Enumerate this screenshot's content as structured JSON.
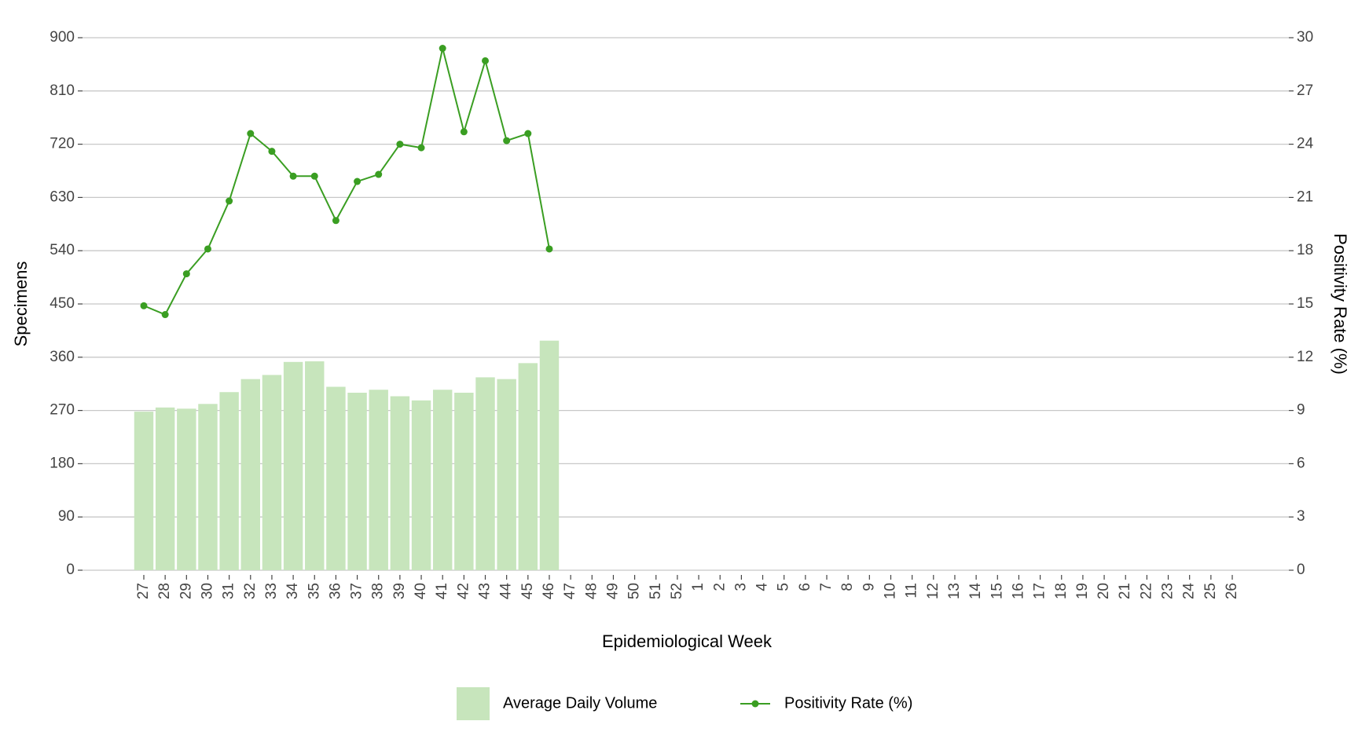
{
  "chart_data": {
    "type": "bar_line",
    "x_label": "Epidemiological Week",
    "y_label": "Specimens",
    "y2_label": "Positivity Rate (%)",
    "categories": [
      "27",
      "28",
      "29",
      "30",
      "31",
      "32",
      "33",
      "34",
      "35",
      "36",
      "37",
      "38",
      "39",
      "40",
      "41",
      "42",
      "43",
      "44",
      "45",
      "46",
      "47",
      "48",
      "49",
      "50",
      "51",
      "52",
      "1",
      "2",
      "3",
      "4",
      "5",
      "6",
      "7",
      "8",
      "9",
      "10",
      "11",
      "12",
      "13",
      "14",
      "15",
      "16",
      "17",
      "18",
      "19",
      "20",
      "21",
      "22",
      "23",
      "24",
      "25",
      "26"
    ],
    "series": [
      {
        "name": "Average Daily Volume",
        "type": "bar",
        "color": "#c7e5bc",
        "values": [
          268,
          275,
          273,
          281,
          301,
          323,
          330,
          352,
          353,
          310,
          300,
          305,
          294,
          287,
          305,
          300,
          326,
          323,
          350,
          388,
          null,
          null,
          null,
          null,
          null,
          null,
          null,
          null,
          null,
          null,
          null,
          null,
          null,
          null,
          null,
          null,
          null,
          null,
          null,
          null,
          null,
          null,
          null,
          null,
          null,
          null,
          null,
          null,
          null,
          null,
          null,
          null
        ]
      },
      {
        "name": "Positivity Rate (%)",
        "type": "line",
        "axis": "y2",
        "color": "#3a9e22",
        "values": [
          14.9,
          14.4,
          16.7,
          18.1,
          20.8,
          24.6,
          23.6,
          22.2,
          22.2,
          19.7,
          21.9,
          22.3,
          24.0,
          23.8,
          29.4,
          24.7,
          28.7,
          24.2,
          24.6,
          18.1,
          null,
          null,
          null,
          null,
          null,
          null,
          null,
          null,
          null,
          null,
          null,
          null,
          null,
          null,
          null,
          null,
          null,
          null,
          null,
          null,
          null,
          null,
          null,
          null,
          null,
          null,
          null,
          null,
          null,
          null,
          null,
          null
        ]
      }
    ],
    "ylim": [
      0,
      900
    ],
    "yticks": [
      0,
      90,
      180,
      270,
      360,
      450,
      540,
      630,
      720,
      810,
      900
    ],
    "y2lim": [
      0,
      30
    ],
    "y2ticks": [
      0,
      3,
      6,
      9,
      12,
      15,
      18,
      21,
      24,
      27,
      30
    ],
    "grid": true,
    "legend": "bottom"
  }
}
